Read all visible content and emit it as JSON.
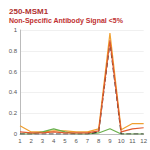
{
  "chart_data": {
    "type": "line",
    "title": "250-MSM1",
    "subtitle": "Non-Specific Antibody Signal <5%",
    "categories": [
      "1",
      "2",
      "3",
      "4",
      "5",
      "6",
      "7",
      "8",
      "9",
      "10",
      "11",
      "12"
    ],
    "series": [
      {
        "color": "#f0a030",
        "line_style": "solid",
        "values": [
          0.08,
          0.02,
          0.02,
          0.03,
          0.03,
          0.02,
          0.02,
          0.05,
          0.97,
          0.04,
          0.1,
          0.1
        ]
      },
      {
        "color": "#6ab04c",
        "line_style": "solid",
        "values": [
          0,
          0,
          0.02,
          0.05,
          0.02,
          0,
          0,
          0.01,
          0.05,
          0,
          0,
          0
        ]
      },
      {
        "color": "#333333",
        "line_style": "dashed",
        "values": [
          0,
          0,
          0,
          0,
          0,
          0,
          0,
          0.02,
          0.88,
          0,
          0,
          0
        ]
      },
      {
        "color": "#e05a30",
        "line_style": "solid",
        "values": [
          0.02,
          0.01,
          0.01,
          0.02,
          0.01,
          0.01,
          0.01,
          0.03,
          0.9,
          0.02,
          0.05,
          0.06
        ]
      }
    ],
    "ylim": [
      0,
      1
    ],
    "yticks": [
      0,
      0.2,
      0.4,
      0.6,
      0.8,
      1
    ],
    "grid": true
  }
}
